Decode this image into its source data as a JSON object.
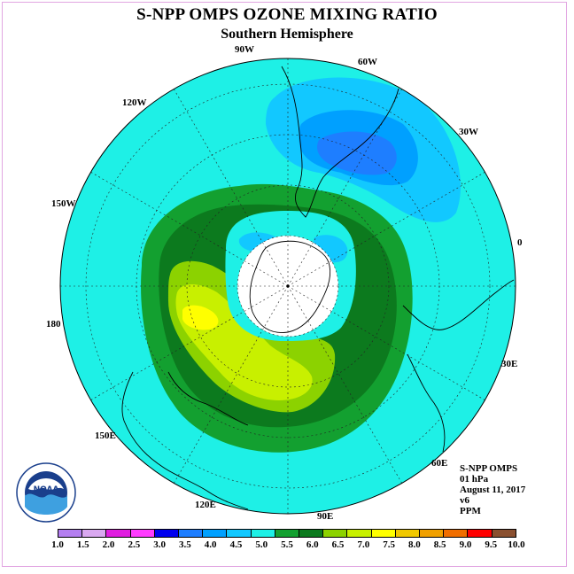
{
  "title": "S-NPP OMPS OZONE MIXING RATIO",
  "subtitle": "Southern Hemisphere",
  "longitude_labels": {
    "w90": "90W",
    "w60": "60W",
    "w30": "30W",
    "w120": "120W",
    "w150": "150W",
    "zero": "0",
    "deg180": "180",
    "e30": "30E",
    "e60": "60E",
    "e90": "90E",
    "e120": "120E",
    "e150": "150E"
  },
  "info": {
    "instrument": "S-NPP OMPS",
    "level": "01 hPa",
    "date": "August 11, 2017",
    "version": "v6",
    "units": "PPM"
  },
  "logo": {
    "text": "NOAA",
    "icon": "noaa-logo-icon"
  },
  "legend": {
    "colors": [
      "#b47ff0",
      "#d9a8f0",
      "#e01ee0",
      "#ff3cff",
      "#0000ee",
      "#1e7eff",
      "#00a0ff",
      "#12c8ff",
      "#1ef0e6",
      "#13a030",
      "#0c7a1e",
      "#8cd200",
      "#c8f000",
      "#ffff00",
      "#f0c800",
      "#f0a000",
      "#f06e00",
      "#ff0000",
      "#8a5030"
    ],
    "ticks": [
      "1.0",
      "1.5",
      "2.0",
      "2.5",
      "3.0",
      "3.5",
      "4.0",
      "4.5",
      "5.0",
      "5.5",
      "6.0",
      "6.5",
      "7.0",
      "7.5",
      "8.0",
      "8.5",
      "9.0",
      "9.5",
      "10.0"
    ]
  }
}
